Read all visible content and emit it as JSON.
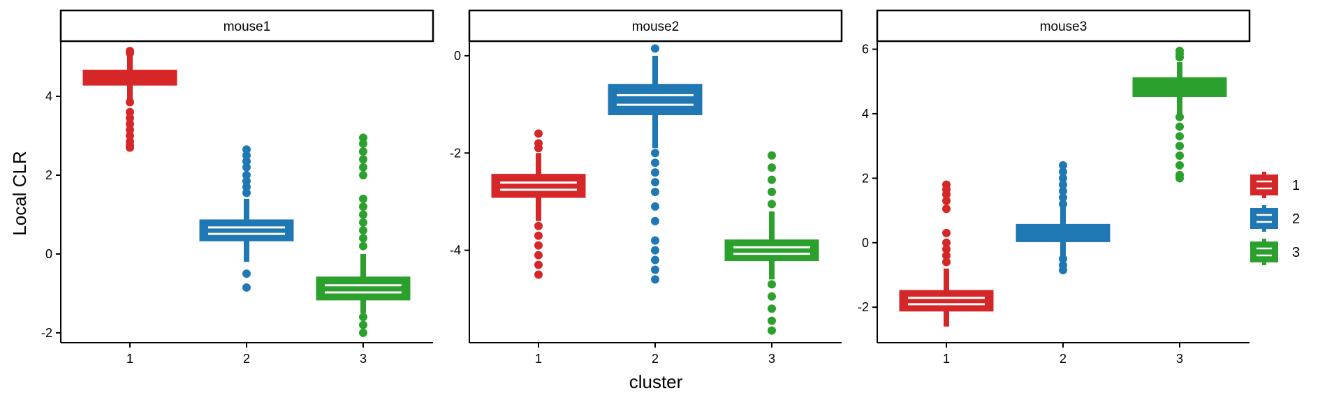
{
  "chart_data": {
    "type": "box",
    "ylabel": "Local CLR",
    "xlabel": "cluster",
    "categories": [
      "1",
      "2",
      "3"
    ],
    "colors": {
      "1": "#D62728",
      "2": "#1F77B4",
      "3": "#2CA02C"
    },
    "legend": {
      "position": "right",
      "entries": [
        "1",
        "2",
        "3"
      ]
    },
    "grid": false,
    "panels": [
      {
        "strip": "mouse1",
        "ylim": [
          -2.25,
          5.4
        ],
        "yticks": [
          -2,
          0,
          2,
          4
        ],
        "ytick_labels": [
          "-2",
          "0",
          "2",
          "4"
        ],
        "boxes": [
          {
            "cluster": "1",
            "q1": 4.3,
            "median": 4.45,
            "q3": 4.65,
            "whisker_low": 3.9,
            "whisker_high": 5.05,
            "outliers": [
              5.15,
              5.1,
              3.85,
              3.6,
              3.45,
              3.3,
              3.15,
              3.0,
              2.85,
              2.75,
              2.7
            ]
          },
          {
            "cluster": "2",
            "q1": 0.35,
            "median": 0.6,
            "q3": 0.85,
            "whisker_low": -0.2,
            "whisker_high": 1.4,
            "outliers": [
              2.65,
              2.5,
              2.35,
              2.2,
              2.0,
              1.85,
              1.7,
              1.55,
              -0.5,
              -0.85
            ]
          },
          {
            "cluster": "3",
            "q1": -1.15,
            "median": -0.9,
            "q3": -0.6,
            "whisker_low": -1.5,
            "whisker_high": 0.0,
            "outliers": [
              2.95,
              2.8,
              2.6,
              2.4,
              2.2,
              2.0,
              1.4,
              1.2,
              1.0,
              0.8,
              0.6,
              0.4,
              0.2,
              -1.6,
              -1.8,
              -2.0
            ]
          }
        ]
      },
      {
        "strip": "mouse2",
        "ylim": [
          -5.9,
          0.3
        ],
        "yticks": [
          -4,
          -2,
          0
        ],
        "ytick_labels": [
          "-4",
          "-2",
          "0"
        ],
        "boxes": [
          {
            "cluster": "1",
            "q1": -2.9,
            "median": -2.75,
            "q3": -2.45,
            "whisker_low": -3.4,
            "whisker_high": -2.0,
            "outliers": [
              -1.6,
              -1.8,
              -1.9,
              -3.5,
              -3.7,
              -3.9,
              -4.1,
              -4.3,
              -4.5
            ]
          },
          {
            "cluster": "2",
            "q1": -1.2,
            "median": -0.9,
            "q3": -0.6,
            "whisker_low": -1.9,
            "whisker_high": 0.0,
            "outliers": [
              0.15,
              -2.0,
              -2.2,
              -2.4,
              -2.6,
              -2.8,
              -3.1,
              -3.4,
              -3.8,
              -4.0,
              -4.2,
              -4.4,
              -4.6
            ]
          },
          {
            "cluster": "3",
            "q1": -4.2,
            "median": -4.0,
            "q3": -3.8,
            "whisker_low": -4.6,
            "whisker_high": -3.2,
            "outliers": [
              -2.05,
              -2.3,
              -2.55,
              -2.8,
              -3.05,
              -4.7,
              -4.95,
              -5.2,
              -5.45,
              -5.65
            ]
          }
        ]
      },
      {
        "strip": "mouse3",
        "ylim": [
          -3.1,
          6.25
        ],
        "yticks": [
          -2,
          0,
          2,
          4,
          6
        ],
        "ytick_labels": [
          "-2",
          "0",
          "2",
          "4",
          "6"
        ],
        "boxes": [
          {
            "cluster": "1",
            "q1": -2.1,
            "median": -1.8,
            "q3": -1.5,
            "whisker_low": -2.6,
            "whisker_high": -0.8,
            "outliers": [
              1.8,
              1.65,
              1.5,
              1.3,
              1.05,
              0.3,
              0.0,
              -0.2,
              -0.4,
              -0.6
            ]
          },
          {
            "cluster": "2",
            "q1": 0.05,
            "median": 0.3,
            "q3": 0.55,
            "whisker_low": -0.4,
            "whisker_high": 1.1,
            "outliers": [
              2.4,
              2.2,
              2.0,
              1.8,
              1.6,
              1.4,
              1.2,
              -0.5,
              -0.7,
              -0.85
            ]
          },
          {
            "cluster": "3",
            "q1": 4.55,
            "median": 4.8,
            "q3": 5.1,
            "whisker_low": 4.0,
            "whisker_high": 5.6,
            "outliers": [
              5.95,
              5.85,
              5.75,
              3.9,
              3.6,
              3.3,
              3.0,
              2.7,
              2.4,
              2.1,
              2.0
            ]
          }
        ]
      }
    ]
  }
}
